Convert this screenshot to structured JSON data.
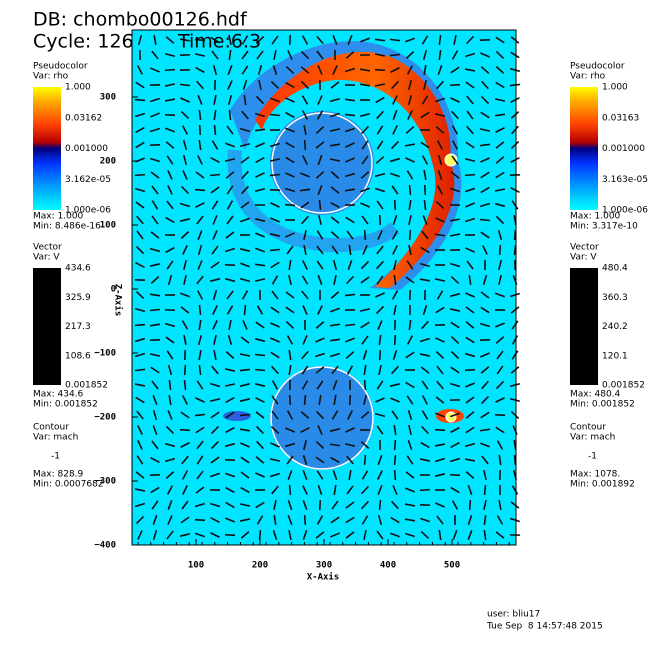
{
  "header": {
    "db": "DB: chombo00126.hdf",
    "cycle": "Cycle: 126",
    "time": "Time:6.3"
  },
  "axes": {
    "x_label": "X-Axis",
    "y_label": "Z-Axis",
    "x_ticks": [
      "100",
      "200",
      "300",
      "400",
      "500"
    ],
    "y_ticks": [
      "300",
      "200",
      "100",
      "0",
      "−100",
      "−200",
      "−300",
      "−400"
    ]
  },
  "legends": [
    {
      "pseudocolor": {
        "title": "Pseudocolor",
        "var": "Var: rho",
        "labels": [
          "1.000",
          "0.03162",
          "0.001000",
          "3.162e-05",
          "1.000e-06"
        ],
        "max": "Max: 1.000",
        "min": "Min: 8.486e-16"
      },
      "vector": {
        "title": "Vector",
        "var": "Var: V",
        "labels": [
          "434.6",
          "325.9",
          "217.3",
          "108.6",
          "0.001852"
        ],
        "max": "Max: 434.6",
        "min": "Min: 0.001852"
      },
      "contour": {
        "title": "Contour",
        "var": "Var: mach",
        "level": "-1",
        "max": "Max: 828.9",
        "min": "Min: 0.0007682"
      }
    },
    {
      "pseudocolor": {
        "title": "Pseudocolor",
        "var": "Var: rho",
        "labels": [
          "1.000",
          "0.03163",
          "0.001000",
          "3.163e-05",
          "1.000e-06"
        ],
        "max": "Max: 1.000",
        "min": "Min: 3.317e-10"
      },
      "vector": {
        "title": "Vector",
        "var": "Var: V",
        "labels": [
          "480.4",
          "360.3",
          "240.2",
          "120.1",
          "0.001852"
        ],
        "max": "Max: 480.4",
        "min": "Min: 0.001852"
      },
      "contour": {
        "title": "Contour",
        "var": "Var: mach",
        "level": "-1",
        "max": "Max: 1078.",
        "min": "Min: 0.001892"
      }
    }
  ],
  "footer": {
    "user": "user: bliu17",
    "date": "Tue Sep  8 14:57:48 2015"
  }
}
